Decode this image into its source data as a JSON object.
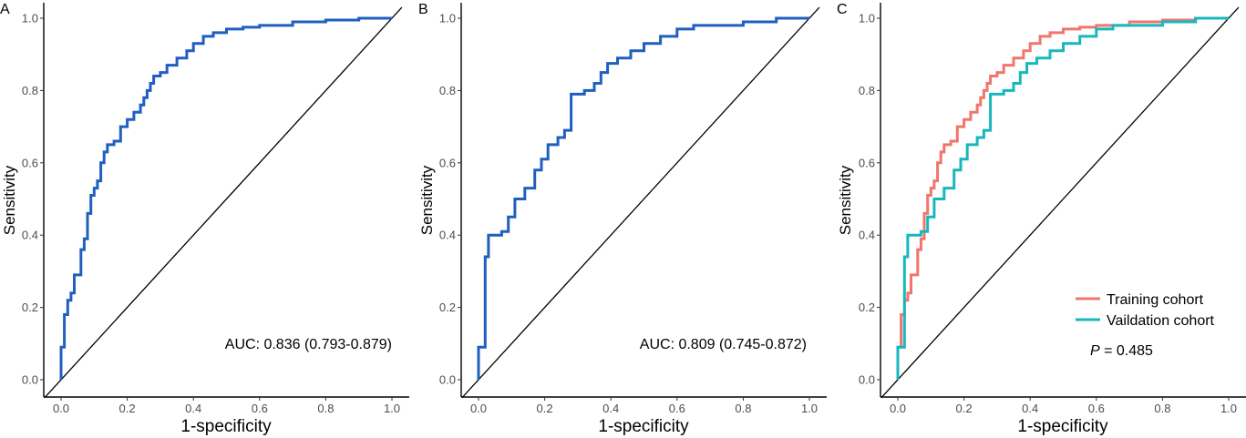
{
  "colors": {
    "blue": "#1f5fbf",
    "training": "#f0766d",
    "validation": "#17b8bd",
    "diagonal": "#000000",
    "axis": "#000000"
  },
  "chart_data": [
    {
      "panel": "A",
      "type": "line",
      "xlabel": "1-specificity",
      "ylabel": "Sensitivity",
      "xlim": [
        0,
        1
      ],
      "ylim": [
        0,
        1
      ],
      "x_ticks": [
        "0.0",
        "0.2",
        "0.4",
        "0.6",
        "0.8",
        "1.0"
      ],
      "y_ticks": [
        "0.0",
        "0.2",
        "0.4",
        "0.6",
        "0.8",
        "1.0"
      ],
      "grid": false,
      "annotation": "AUC: 0.836 (0.793-0.879)",
      "series": [
        {
          "color": "#1f5fbf",
          "x": [
            0,
            0,
            0.01,
            0.01,
            0.02,
            0.02,
            0.03,
            0.03,
            0.04,
            0.04,
            0.06,
            0.06,
            0.07,
            0.07,
            0.08,
            0.08,
            0.09,
            0.09,
            0.1,
            0.1,
            0.11,
            0.11,
            0.12,
            0.12,
            0.13,
            0.13,
            0.14,
            0.14,
            0.16,
            0.16,
            0.18,
            0.18,
            0.2,
            0.2,
            0.22,
            0.22,
            0.24,
            0.24,
            0.25,
            0.25,
            0.26,
            0.26,
            0.27,
            0.27,
            0.28,
            0.28,
            0.3,
            0.3,
            0.32,
            0.32,
            0.35,
            0.35,
            0.38,
            0.38,
            0.4,
            0.4,
            0.43,
            0.43,
            0.46,
            0.46,
            0.5,
            0.5,
            0.55,
            0.55,
            0.6,
            0.6,
            0.7,
            0.7,
            0.8,
            0.8,
            0.9,
            0.9,
            1.0
          ],
          "y": [
            0,
            0.09,
            0.09,
            0.18,
            0.18,
            0.22,
            0.22,
            0.24,
            0.24,
            0.29,
            0.29,
            0.36,
            0.36,
            0.39,
            0.39,
            0.46,
            0.46,
            0.51,
            0.51,
            0.53,
            0.53,
            0.55,
            0.55,
            0.6,
            0.6,
            0.63,
            0.63,
            0.65,
            0.65,
            0.66,
            0.66,
            0.7,
            0.7,
            0.72,
            0.72,
            0.74,
            0.74,
            0.76,
            0.76,
            0.78,
            0.78,
            0.8,
            0.8,
            0.82,
            0.82,
            0.84,
            0.84,
            0.85,
            0.85,
            0.87,
            0.87,
            0.89,
            0.89,
            0.91,
            0.91,
            0.93,
            0.93,
            0.95,
            0.95,
            0.96,
            0.96,
            0.97,
            0.97,
            0.975,
            0.975,
            0.98,
            0.98,
            0.99,
            0.99,
            0.995,
            0.995,
            1.0,
            1.0
          ]
        }
      ]
    },
    {
      "panel": "B",
      "type": "line",
      "xlabel": "1-specificity",
      "ylabel": "Sensitivity",
      "xlim": [
        0,
        1
      ],
      "ylim": [
        0,
        1
      ],
      "x_ticks": [
        "0.0",
        "0.2",
        "0.4",
        "0.6",
        "0.8",
        "1.0"
      ],
      "y_ticks": [
        "0.0",
        "0.2",
        "0.4",
        "0.6",
        "0.8",
        "1.0"
      ],
      "grid": false,
      "annotation": "AUC: 0.809 (0.745-0.872)",
      "series": [
        {
          "color": "#1f5fbf",
          "x": [
            0,
            0,
            0.02,
            0.02,
            0.03,
            0.03,
            0.07,
            0.07,
            0.09,
            0.09,
            0.11,
            0.11,
            0.14,
            0.14,
            0.17,
            0.17,
            0.19,
            0.19,
            0.21,
            0.21,
            0.24,
            0.24,
            0.26,
            0.26,
            0.28,
            0.28,
            0.32,
            0.32,
            0.35,
            0.35,
            0.37,
            0.37,
            0.39,
            0.39,
            0.42,
            0.42,
            0.46,
            0.46,
            0.5,
            0.5,
            0.55,
            0.55,
            0.6,
            0.6,
            0.65,
            0.65,
            0.8,
            0.8,
            0.9,
            0.9,
            1.0
          ],
          "y": [
            0,
            0.09,
            0.09,
            0.34,
            0.34,
            0.4,
            0.4,
            0.41,
            0.41,
            0.45,
            0.45,
            0.5,
            0.5,
            0.53,
            0.53,
            0.58,
            0.58,
            0.61,
            0.61,
            0.65,
            0.65,
            0.67,
            0.67,
            0.69,
            0.69,
            0.79,
            0.79,
            0.8,
            0.8,
            0.82,
            0.82,
            0.85,
            0.85,
            0.875,
            0.875,
            0.89,
            0.89,
            0.91,
            0.91,
            0.93,
            0.93,
            0.95,
            0.95,
            0.97,
            0.97,
            0.98,
            0.98,
            0.99,
            0.99,
            1.0,
            1.0
          ]
        }
      ]
    },
    {
      "panel": "C",
      "type": "line",
      "xlabel": "1-specificity",
      "ylabel": "Sensitivity",
      "xlim": [
        0,
        1
      ],
      "ylim": [
        0,
        1
      ],
      "x_ticks": [
        "0.0",
        "0.2",
        "0.4",
        "0.6",
        "0.8",
        "1.0"
      ],
      "y_ticks": [
        "0.0",
        "0.2",
        "0.4",
        "0.6",
        "0.8",
        "1.0"
      ],
      "grid": false,
      "legend_position": "bottom-right",
      "annotation_p_label": "P",
      "annotation_p_value": " = 0.485",
      "series": [
        {
          "name": "Training cohort",
          "color": "#f0766d",
          "x": [
            0,
            0,
            0.01,
            0.01,
            0.02,
            0.02,
            0.03,
            0.03,
            0.04,
            0.04,
            0.06,
            0.06,
            0.07,
            0.07,
            0.08,
            0.08,
            0.09,
            0.09,
            0.1,
            0.1,
            0.11,
            0.11,
            0.12,
            0.12,
            0.13,
            0.13,
            0.14,
            0.14,
            0.16,
            0.16,
            0.18,
            0.18,
            0.2,
            0.2,
            0.22,
            0.22,
            0.24,
            0.24,
            0.25,
            0.25,
            0.26,
            0.26,
            0.27,
            0.27,
            0.28,
            0.28,
            0.3,
            0.3,
            0.32,
            0.32,
            0.35,
            0.35,
            0.38,
            0.38,
            0.4,
            0.4,
            0.43,
            0.43,
            0.46,
            0.46,
            0.5,
            0.5,
            0.55,
            0.55,
            0.6,
            0.6,
            0.7,
            0.7,
            0.8,
            0.8,
            0.9,
            0.9,
            1.0
          ],
          "y": [
            0,
            0.09,
            0.09,
            0.18,
            0.18,
            0.22,
            0.22,
            0.24,
            0.24,
            0.29,
            0.29,
            0.36,
            0.36,
            0.39,
            0.39,
            0.46,
            0.46,
            0.51,
            0.51,
            0.53,
            0.53,
            0.55,
            0.55,
            0.6,
            0.6,
            0.63,
            0.63,
            0.65,
            0.65,
            0.66,
            0.66,
            0.7,
            0.7,
            0.72,
            0.72,
            0.74,
            0.74,
            0.76,
            0.76,
            0.78,
            0.78,
            0.8,
            0.8,
            0.82,
            0.82,
            0.84,
            0.84,
            0.85,
            0.85,
            0.87,
            0.87,
            0.89,
            0.89,
            0.91,
            0.91,
            0.93,
            0.93,
            0.95,
            0.95,
            0.96,
            0.96,
            0.97,
            0.97,
            0.975,
            0.975,
            0.98,
            0.98,
            0.99,
            0.99,
            0.995,
            0.995,
            1.0,
            1.0
          ]
        },
        {
          "name": "Vaildation cohort",
          "color": "#17b8bd",
          "x": [
            0,
            0,
            0.02,
            0.02,
            0.03,
            0.03,
            0.07,
            0.07,
            0.09,
            0.09,
            0.11,
            0.11,
            0.14,
            0.14,
            0.17,
            0.17,
            0.19,
            0.19,
            0.21,
            0.21,
            0.24,
            0.24,
            0.26,
            0.26,
            0.28,
            0.28,
            0.32,
            0.32,
            0.35,
            0.35,
            0.37,
            0.37,
            0.39,
            0.39,
            0.42,
            0.42,
            0.46,
            0.46,
            0.5,
            0.5,
            0.55,
            0.55,
            0.6,
            0.6,
            0.65,
            0.65,
            0.8,
            0.8,
            0.9,
            0.9,
            1.0
          ],
          "y": [
            0,
            0.09,
            0.09,
            0.34,
            0.34,
            0.4,
            0.4,
            0.41,
            0.41,
            0.45,
            0.45,
            0.5,
            0.5,
            0.53,
            0.53,
            0.58,
            0.58,
            0.61,
            0.61,
            0.65,
            0.65,
            0.67,
            0.67,
            0.69,
            0.69,
            0.79,
            0.79,
            0.8,
            0.8,
            0.82,
            0.82,
            0.85,
            0.85,
            0.875,
            0.875,
            0.89,
            0.89,
            0.91,
            0.91,
            0.93,
            0.93,
            0.95,
            0.95,
            0.97,
            0.97,
            0.98,
            0.98,
            0.99,
            0.99,
            1.0,
            1.0
          ]
        }
      ]
    }
  ]
}
